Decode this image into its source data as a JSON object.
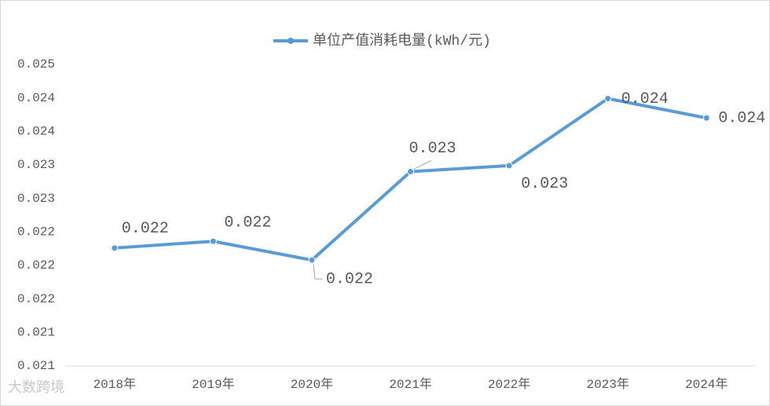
{
  "chart_data": {
    "type": "line",
    "legend_label": "单位产值消耗电量(kWh/元)",
    "legend_position": "top",
    "categories": [
      "2018年",
      "2019年",
      "2020年",
      "2021年",
      "2022年",
      "2023年",
      "2024年"
    ],
    "series": [
      {
        "name": "单位产值消耗电量(kWh/元)",
        "color": "#5b9bd5",
        "values": [
          0.02226,
          0.02236,
          0.02208,
          0.0234,
          0.02349,
          0.02449,
          0.0242
        ],
        "value_labels": [
          "0.022",
          "0.022",
          "0.022",
          "0.023",
          "0.023",
          "0.024",
          "0.024"
        ]
      }
    ],
    "ylim": [
      0.0205,
      0.025
    ],
    "yticks": [
      {
        "value": 0.0205,
        "label": "0.021"
      },
      {
        "value": 0.021,
        "label": "0.021"
      },
      {
        "value": 0.0215,
        "label": "0.022"
      },
      {
        "value": 0.022,
        "label": "0.022"
      },
      {
        "value": 0.0225,
        "label": "0.022"
      },
      {
        "value": 0.023,
        "label": "0.023"
      },
      {
        "value": 0.0235,
        "label": "0.023"
      },
      {
        "value": 0.024,
        "label": "0.024"
      },
      {
        "value": 0.0245,
        "label": "0.024"
      },
      {
        "value": 0.025,
        "label": "0.025"
      }
    ],
    "grid": false,
    "watermark": "大数跨境"
  }
}
